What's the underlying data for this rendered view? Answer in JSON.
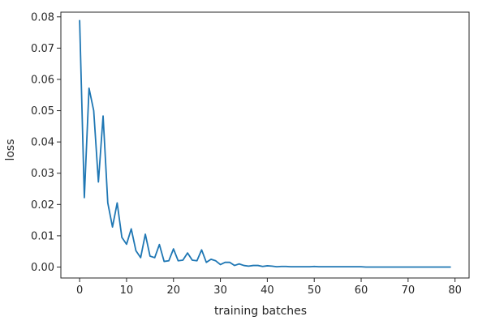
{
  "chart_data": {
    "type": "line",
    "title": "",
    "xlabel": "training batches",
    "ylabel": "loss",
    "xlim": [
      -4,
      83
    ],
    "ylim": [
      -0.0035,
      0.0815
    ],
    "xticks": [
      0,
      10,
      20,
      30,
      40,
      50,
      60,
      70,
      80
    ],
    "yticks": [
      0.0,
      0.01,
      0.02,
      0.03,
      0.04,
      0.05,
      0.06,
      0.07,
      0.08
    ],
    "ytick_labels": [
      "0.00",
      "0.01",
      "0.02",
      "0.03",
      "0.04",
      "0.05",
      "0.06",
      "0.07",
      "0.08"
    ],
    "grid": false,
    "legend": "none",
    "color": "#1f77b4",
    "series": [
      {
        "x": [
          0,
          1,
          2,
          3,
          4,
          5,
          6,
          7,
          8,
          9,
          10,
          11,
          12,
          13,
          14,
          15,
          16,
          17,
          18,
          19,
          20,
          21,
          22,
          23,
          24,
          25,
          26,
          27,
          28,
          29,
          30,
          31,
          32,
          33,
          34,
          35,
          36,
          37,
          38,
          39,
          40,
          41,
          42,
          43,
          44,
          45,
          46,
          47,
          48,
          49,
          50,
          51,
          52,
          53,
          54,
          55,
          56,
          57,
          58,
          59,
          60,
          61,
          62,
          63,
          64,
          65,
          66,
          67,
          68,
          69,
          70,
          71,
          72,
          73,
          74,
          75,
          76,
          77,
          78,
          79
        ],
        "values": [
          0.0788,
          0.0222,
          0.0572,
          0.05,
          0.0272,
          0.0483,
          0.0205,
          0.0128,
          0.0205,
          0.0095,
          0.0073,
          0.0122,
          0.0052,
          0.003,
          0.0105,
          0.0035,
          0.003,
          0.0072,
          0.0018,
          0.002,
          0.0058,
          0.002,
          0.0022,
          0.0045,
          0.0022,
          0.002,
          0.0055,
          0.0015,
          0.0025,
          0.002,
          0.0008,
          0.0015,
          0.0015,
          0.0005,
          0.001,
          0.0005,
          0.0003,
          0.0005,
          0.0005,
          0.0002,
          0.0004,
          0.0003,
          0.0001,
          0.0002,
          0.0002,
          0.0001,
          0.0001,
          0.0001,
          0.0001,
          0.0001,
          0.0002,
          0.0001,
          0.0001,
          0.0001,
          0.0001,
          0.0001,
          0.0001,
          0.0001,
          0.0001,
          0.0001,
          0.0001,
          0.0,
          0.0,
          0.0,
          0.0,
          0.0,
          0.0,
          0.0,
          0.0,
          0.0,
          0.0,
          0.0,
          0.0,
          0.0,
          0.0,
          0.0,
          0.0,
          0.0,
          0.0,
          0.0
        ]
      }
    ]
  }
}
